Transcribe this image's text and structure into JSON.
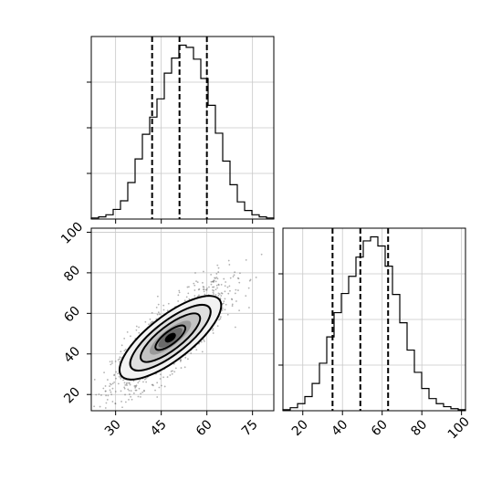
{
  "chart_data": [
    {
      "panel": "top-left-marginal-histogram",
      "type": "histogram",
      "variable_axis": "x",
      "bin_range": [
        22,
        82
      ],
      "bin_width": 2.4,
      "counts": [
        1,
        2,
        4,
        9,
        17,
        34,
        56,
        79,
        95,
        112,
        136,
        150,
        162,
        160,
        149,
        131,
        106,
        80,
        54,
        32,
        16,
        8,
        4,
        2,
        1
      ],
      "quantile_lines": [
        42,
        51,
        60
      ],
      "grid": true,
      "y_ticks_labeled": false
    },
    {
      "panel": "bottom-left-2d-density",
      "type": "scatter",
      "xlim": [
        22,
        82
      ],
      "ylim": [
        12,
        102
      ],
      "x_ticks": [
        30,
        45,
        60,
        75
      ],
      "y_ticks": [
        20,
        40,
        60,
        80,
        100
      ],
      "density_center": [
        48,
        48
      ],
      "contour_levels": 4,
      "grid": true
    },
    {
      "panel": "bottom-right-marginal-histogram",
      "type": "histogram",
      "variable_axis": "x",
      "bin_range": [
        10,
        102
      ],
      "bin_width": 3.7,
      "counts": [
        1,
        3,
        7,
        14,
        27,
        47,
        73,
        97,
        116,
        133,
        152,
        168,
        172,
        163,
        143,
        115,
        87,
        60,
        38,
        22,
        12,
        7,
        4,
        2,
        1
      ],
      "quantile_lines": [
        35,
        49,
        63
      ],
      "x_ticks": [
        20,
        40,
        60,
        80,
        100
      ],
      "grid": true,
      "y_ticks_labeled": false
    }
  ]
}
